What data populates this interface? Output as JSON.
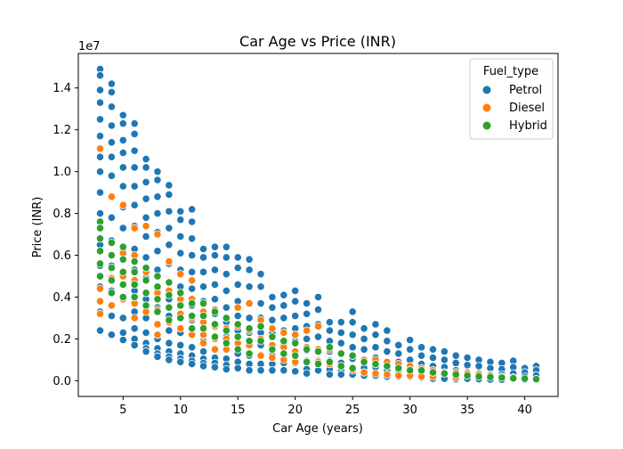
{
  "chart_data": {
    "type": "scatter",
    "title": "Car Age vs Price (INR)",
    "xlabel": "Car Age (years)",
    "ylabel": "Price (INR)",
    "y_offset_label": "1e7",
    "xlim": [
      1.1,
      42.9
    ],
    "ylim": [
      -750000,
      15650000
    ],
    "x_ticks": [
      5,
      10,
      15,
      20,
      25,
      30,
      35,
      40
    ],
    "x_tick_labels": [
      "5",
      "10",
      "15",
      "20",
      "25",
      "30",
      "35",
      "40"
    ],
    "y_ticks": [
      0,
      2000000,
      4000000,
      6000000,
      8000000,
      10000000,
      12000000,
      14000000
    ],
    "y_tick_labels": [
      "0.0",
      "0.2",
      "0.4",
      "0.6",
      "0.8",
      "1.0",
      "1.2",
      "1.4"
    ],
    "grid": false,
    "legend": {
      "title": "Fuel_type",
      "placement": "top-right",
      "entries": [
        {
          "name": "Petrol",
          "color": "#1f77b4"
        },
        {
          "name": "Diesel",
          "color": "#ff7f0e"
        },
        {
          "name": "Hybrid",
          "color": "#2ca02c"
        }
      ]
    },
    "series": [
      {
        "name": "Petrol",
        "color": "#1f77b4",
        "x": [
          3,
          3,
          3,
          3,
          3,
          3,
          3,
          3,
          3,
          3,
          3,
          3,
          3,
          3,
          3,
          4,
          4,
          4,
          4,
          4,
          4,
          4,
          4,
          4,
          4,
          4,
          4,
          4,
          4,
          5,
          5,
          5,
          5,
          5,
          5,
          5,
          5,
          5,
          5,
          5,
          5,
          5,
          5,
          6,
          6,
          6,
          6,
          6,
          6,
          6,
          6,
          6,
          6,
          6,
          6,
          6,
          6,
          7,
          7,
          7,
          7,
          7,
          7,
          7,
          7,
          7,
          7,
          7,
          7,
          7,
          7,
          8,
          8,
          8,
          8,
          8,
          8,
          8,
          8,
          8,
          8,
          8,
          8,
          8,
          8,
          9,
          9,
          9,
          9,
          9,
          9,
          9,
          9,
          9,
          9,
          9,
          9,
          9,
          9,
          10,
          10,
          10,
          10,
          10,
          10,
          10,
          10,
          10,
          10,
          10,
          10,
          10,
          11,
          11,
          11,
          11,
          11,
          11,
          11,
          11,
          11,
          11,
          11,
          11,
          11,
          12,
          12,
          12,
          12,
          12,
          12,
          12,
          12,
          12,
          12,
          12,
          12,
          13,
          13,
          13,
          13,
          13,
          13,
          13,
          13,
          13,
          13,
          13,
          13,
          14,
          14,
          14,
          14,
          14,
          14,
          14,
          14,
          14,
          14,
          14,
          15,
          15,
          15,
          15,
          15,
          15,
          15,
          15,
          15,
          15,
          16,
          16,
          16,
          16,
          16,
          16,
          16,
          16,
          16,
          16,
          17,
          17,
          17,
          17,
          17,
          17,
          17,
          17,
          17,
          18,
          18,
          18,
          18,
          18,
          18,
          18,
          18,
          19,
          19,
          19,
          19,
          19,
          19,
          19,
          19,
          20,
          20,
          20,
          20,
          20,
          20,
          20,
          20,
          21,
          21,
          21,
          21,
          21,
          21,
          21,
          21,
          22,
          22,
          22,
          22,
          22,
          22,
          22,
          23,
          23,
          23,
          23,
          23,
          23,
          23,
          24,
          24,
          24,
          24,
          24,
          24,
          24,
          25,
          25,
          25,
          25,
          25,
          25,
          25,
          26,
          26,
          26,
          26,
          26,
          26,
          27,
          27,
          27,
          27,
          27,
          27,
          28,
          28,
          28,
          28,
          28,
          28,
          29,
          29,
          29,
          29,
          29,
          30,
          30,
          30,
          30,
          30,
          31,
          31,
          31,
          31,
          31,
          32,
          32,
          32,
          32,
          32,
          33,
          33,
          33,
          33,
          33,
          34,
          34,
          34,
          34,
          34,
          35,
          35,
          35,
          35,
          36,
          36,
          36,
          36,
          37,
          37,
          37,
          37,
          38,
          38,
          38,
          38,
          39,
          39,
          39,
          39,
          40,
          40,
          40,
          40,
          41,
          41,
          41,
          41
        ],
        "y": [
          14900000,
          14600000,
          13900000,
          13300000,
          12500000,
          11700000,
          10700000,
          10000000,
          9000000,
          8000000,
          6500000,
          5500000,
          4500000,
          3300000,
          2400000,
          14200000,
          13800000,
          13100000,
          12200000,
          11400000,
          10700000,
          9800000,
          8800000,
          7800000,
          6700000,
          5500000,
          4300000,
          3100000,
          2200000,
          12700000,
          12300000,
          11500000,
          10900000,
          10200000,
          9300000,
          8300000,
          7300000,
          6200000,
          5100000,
          4000000,
          3000000,
          2300000,
          1950000,
          12300000,
          11800000,
          11000000,
          10200000,
          9300000,
          8400000,
          7400000,
          6300000,
          5300000,
          4300000,
          3300000,
          2500000,
          2000000,
          1700000,
          10600000,
          10200000,
          9500000,
          8700000,
          7800000,
          6900000,
          5900000,
          4900000,
          3900000,
          3000000,
          2300000,
          1800000,
          1550000,
          1400000,
          10000000,
          9600000,
          8800000,
          8000000,
          7100000,
          6200000,
          5300000,
          4400000,
          3500000,
          2700000,
          2000000,
          1550000,
          1300000,
          1150000,
          9350000,
          8900000,
          8100000,
          7300000,
          6500000,
          5600000,
          4700000,
          3900000,
          3100000,
          2400000,
          1800000,
          1400000,
          1150000,
          1000000,
          8100000,
          7700000,
          6900000,
          6100000,
          5300000,
          4500000,
          3700000,
          3000000,
          2300000,
          1700000,
          1300000,
          1050000,
          900000,
          8200000,
          7600000,
          6800000,
          6000000,
          5200000,
          4400000,
          3600000,
          2900000,
          2200000,
          1600000,
          1200000,
          950000,
          800000,
          6300000,
          5900000,
          5200000,
          4500000,
          3800000,
          3100000,
          2500000,
          1900000,
          1400000,
          1050000,
          850000,
          700000,
          6400000,
          6000000,
          5300000,
          4600000,
          3900000,
          3200000,
          2600000,
          2000000,
          1500000,
          1100000,
          850000,
          650000,
          6400000,
          5900000,
          5100000,
          4300000,
          3500000,
          2800000,
          2100000,
          1500000,
          1050000,
          750000,
          550000,
          5900000,
          5400000,
          4600000,
          3800000,
          3100000,
          2400000,
          1800000,
          1300000,
          900000,
          600000,
          5800000,
          5300000,
          4500000,
          3700000,
          3000000,
          2300000,
          1700000,
          1200000,
          800000,
          500000,
          5100000,
          4500000,
          3700000,
          3000000,
          2300000,
          1700000,
          1200000,
          800000,
          500000,
          4000000,
          3500000,
          2900000,
          2300000,
          1700000,
          1200000,
          800000,
          500000,
          4100000,
          3600000,
          3000000,
          2400000,
          1800000,
          1300000,
          850000,
          500000,
          4300000,
          3800000,
          3100000,
          2500000,
          1900000,
          1300000,
          850000,
          450000,
          3700000,
          3200000,
          2600000,
          2000000,
          1450000,
          950000,
          550000,
          350000,
          4000000,
          3400000,
          2700000,
          2100000,
          1500000,
          950000,
          500000,
          2800000,
          2400000,
          1900000,
          1400000,
          950000,
          550000,
          300000,
          2800000,
          2300000,
          1800000,
          1300000,
          850000,
          500000,
          300000,
          3300000,
          2800000,
          2200000,
          1600000,
          1050000,
          600000,
          300000,
          2500000,
          2000000,
          1500000,
          1000000,
          600000,
          250000,
          2700000,
          2200000,
          1600000,
          1100000,
          650000,
          250000,
          2400000,
          1900000,
          1400000,
          900000,
          500000,
          200000,
          1700000,
          1300000,
          900000,
          500000,
          200000,
          1950000,
          1500000,
          1000000,
          550000,
          200000,
          1600000,
          1200000,
          800000,
          400000,
          150000,
          1500000,
          1100000,
          700000,
          350000,
          100000,
          1400000,
          1000000,
          650000,
          300000,
          100000,
          1200000,
          850000,
          500000,
          250000,
          80000,
          1100000,
          750000,
          400000,
          100000,
          1000000,
          700000,
          350000,
          80000,
          900000,
          600000,
          300000,
          60000,
          850000,
          550000,
          300000,
          50000,
          950000,
          650000,
          350000,
          100000,
          600000,
          400000,
          200000,
          50000,
          700000,
          500000,
          250000,
          50000
        ]
      },
      {
        "name": "Diesel",
        "color": "#ff7f0e",
        "x": [
          3,
          3,
          3,
          3,
          3,
          3,
          4,
          4,
          4,
          4,
          4,
          5,
          5,
          5,
          5,
          6,
          6,
          6,
          6,
          6,
          7,
          7,
          7,
          7,
          8,
          8,
          8,
          8,
          8,
          9,
          9,
          9,
          9,
          10,
          10,
          10,
          10,
          11,
          11,
          11,
          11,
          12,
          12,
          12,
          12,
          13,
          13,
          13,
          13,
          14,
          14,
          14,
          15,
          15,
          15,
          16,
          16,
          16,
          17,
          17,
          17,
          18,
          18,
          18,
          19,
          19,
          19,
          20,
          20,
          20,
          21,
          21,
          21,
          22,
          22,
          22,
          23,
          23,
          24,
          24,
          25,
          25,
          26,
          26,
          27,
          27,
          28,
          28,
          29,
          29,
          30,
          30,
          31,
          31,
          32,
          32,
          33,
          34,
          34,
          35,
          36,
          37,
          38,
          39,
          40
        ],
        "y": [
          11100000,
          6200000,
          5000000,
          4400000,
          3800000,
          3200000,
          8800000,
          6000000,
          4900000,
          4200000,
          3600000,
          8400000,
          6100000,
          5000000,
          3900000,
          7300000,
          6000000,
          4800000,
          3700000,
          3000000,
          7400000,
          5200000,
          4200000,
          3300000,
          7000000,
          4200000,
          3400000,
          2700000,
          2200000,
          5700000,
          4300000,
          3500000,
          2800000,
          5100000,
          3900000,
          3200000,
          2500000,
          4800000,
          3900000,
          3000000,
          2200000,
          3300000,
          2800000,
          2200000,
          1800000,
          3400000,
          2600000,
          2000000,
          1500000,
          2500000,
          2000000,
          1500000,
          3500000,
          2600000,
          1800000,
          3700000,
          2400000,
          1700000,
          2900000,
          2000000,
          1200000,
          2500000,
          1700000,
          1100000,
          2300000,
          1600000,
          1000000,
          2200000,
          1400000,
          900000,
          2400000,
          1600000,
          900000,
          2600000,
          1500000,
          900000,
          1500000,
          800000,
          1300000,
          700000,
          1200000,
          500000,
          1000000,
          400000,
          1000000,
          350000,
          900000,
          300000,
          800000,
          250000,
          700000,
          250000,
          600000,
          200000,
          500000,
          200000,
          400000,
          400000,
          150000,
          350000,
          300000,
          250000,
          200000,
          150000,
          100000
        ]
      },
      {
        "name": "Hybrid",
        "color": "#2ca02c",
        "x": [
          3,
          3,
          3,
          3,
          3,
          3,
          4,
          4,
          4,
          4,
          4,
          5,
          5,
          5,
          5,
          5,
          6,
          6,
          6,
          6,
          7,
          7,
          7,
          7,
          8,
          8,
          8,
          8,
          9,
          9,
          9,
          9,
          10,
          10,
          10,
          11,
          11,
          11,
          12,
          12,
          12,
          13,
          13,
          13,
          14,
          14,
          14,
          15,
          15,
          15,
          16,
          16,
          16,
          17,
          17,
          18,
          18,
          19,
          19,
          20,
          20,
          21,
          21,
          22,
          22,
          23,
          23,
          24,
          24,
          25,
          25,
          26,
          27,
          28,
          29,
          30,
          31,
          32,
          33,
          34,
          35,
          36,
          37,
          38,
          39,
          40,
          41
        ],
        "y": [
          7600000,
          7300000,
          6800000,
          6200000,
          5600000,
          5000000,
          6600000,
          6000000,
          5400000,
          4800000,
          4200000,
          6400000,
          5800000,
          5200000,
          4600000,
          4000000,
          5700000,
          5200000,
          4600000,
          4000000,
          5400000,
          4800000,
          4200000,
          3600000,
          5000000,
          4500000,
          3900000,
          3300000,
          4700000,
          4100000,
          3500000,
          2900000,
          4200000,
          3600000,
          3000000,
          3700000,
          3100000,
          2500000,
          3700000,
          3100000,
          2500000,
          3300000,
          2700000,
          2100000,
          3000000,
          2400000,
          1800000,
          2700000,
          2100000,
          1500000,
          2500000,
          1900000,
          1300000,
          2600000,
          1900000,
          2100000,
          1500000,
          1900000,
          1300000,
          1800000,
          1200000,
          1500000,
          900000,
          1400000,
          800000,
          1600000,
          900000,
          1300000,
          700000,
          1200000,
          600000,
          900000,
          800000,
          700000,
          600000,
          500000,
          500000,
          400000,
          350000,
          300000,
          250000,
          200000,
          180000,
          150000,
          120000,
          100000,
          80000
        ]
      }
    ]
  }
}
